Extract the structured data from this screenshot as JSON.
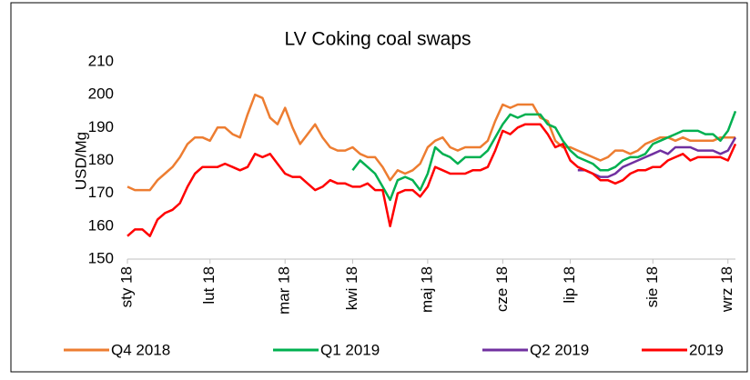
{
  "chart_data": {
    "type": "line",
    "title": "LV Coking coal swaps",
    "ylabel": "USD/Mg",
    "categories": [
      "sty 18",
      null,
      null,
      null,
      null,
      null,
      null,
      null,
      null,
      null,
      null,
      "lut 18",
      null,
      null,
      null,
      null,
      null,
      null,
      null,
      null,
      null,
      "mar 18",
      null,
      null,
      null,
      null,
      null,
      null,
      null,
      null,
      "kwi 18",
      null,
      null,
      null,
      null,
      null,
      null,
      null,
      null,
      null,
      "maj 18",
      null,
      null,
      null,
      null,
      null,
      null,
      null,
      null,
      null,
      "cze 18",
      null,
      null,
      null,
      null,
      null,
      null,
      null,
      null,
      "lip 18",
      null,
      null,
      null,
      null,
      null,
      null,
      null,
      null,
      null,
      null,
      "sie 18",
      null,
      null,
      null,
      null,
      null,
      null,
      null,
      null,
      null,
      "wrz 18",
      null
    ],
    "series": [
      {
        "name": "Q4 2018",
        "color": "#ed7d31",
        "values": [
          172,
          171,
          171,
          171,
          174,
          176,
          178,
          181,
          185,
          187,
          187,
          186,
          190,
          190,
          188,
          187,
          194,
          200,
          199,
          193,
          191,
          196,
          190,
          185,
          188,
          191,
          187,
          184,
          183,
          183,
          184,
          182,
          181,
          181,
          178,
          174,
          177,
          176,
          177,
          179,
          184,
          186,
          187,
          184,
          183,
          184,
          184,
          184,
          186,
          192,
          197,
          196,
          197,
          197,
          197,
          193,
          192,
          186,
          184,
          184,
          183,
          182,
          181,
          180,
          181,
          183,
          183,
          182,
          183,
          185,
          186,
          187,
          187,
          186,
          187,
          186,
          186,
          186,
          186,
          187,
          187,
          187
        ]
      },
      {
        "name": "Q1 2019",
        "color": "#00b050",
        "values": [
          null,
          null,
          null,
          null,
          null,
          null,
          null,
          null,
          null,
          null,
          null,
          null,
          null,
          null,
          null,
          null,
          null,
          null,
          null,
          null,
          null,
          null,
          null,
          null,
          null,
          null,
          null,
          null,
          null,
          null,
          177,
          180,
          178,
          176,
          172,
          168,
          174,
          175,
          174,
          171,
          176,
          184,
          182,
          181,
          179,
          181,
          181,
          181,
          183,
          187,
          191,
          194,
          193,
          194,
          194,
          194,
          191,
          190,
          186,
          183,
          181,
          180,
          179,
          177,
          177,
          178,
          180,
          181,
          181,
          182,
          185,
          186,
          187,
          188,
          189,
          189,
          189,
          188,
          188,
          186,
          189,
          195
        ]
      },
      {
        "name": "Q2 2019",
        "color": "#7030a0",
        "values": [
          null,
          null,
          null,
          null,
          null,
          null,
          null,
          null,
          null,
          null,
          null,
          null,
          null,
          null,
          null,
          null,
          null,
          null,
          null,
          null,
          null,
          null,
          null,
          null,
          null,
          null,
          null,
          null,
          null,
          null,
          null,
          null,
          null,
          null,
          null,
          null,
          null,
          null,
          null,
          null,
          null,
          null,
          null,
          null,
          null,
          null,
          null,
          null,
          null,
          null,
          null,
          null,
          null,
          null,
          null,
          null,
          null,
          null,
          null,
          null,
          177,
          177,
          176,
          175,
          175,
          176,
          178,
          179,
          180,
          181,
          182,
          183,
          182,
          184,
          184,
          184,
          183,
          183,
          183,
          182,
          183,
          187
        ]
      },
      {
        "name": "2019",
        "color": "#ff0000",
        "values": [
          157,
          159,
          159,
          157,
          162,
          164,
          165,
          167,
          172,
          176,
          178,
          178,
          178,
          179,
          178,
          177,
          178,
          182,
          181,
          182,
          179,
          176,
          175,
          175,
          173,
          171,
          172,
          174,
          173,
          173,
          172,
          172,
          173,
          171,
          171,
          160,
          170,
          171,
          171,
          169,
          172,
          178,
          177,
          176,
          176,
          176,
          177,
          177,
          178,
          183,
          189,
          188,
          190,
          191,
          191,
          191,
          188,
          184,
          185,
          180,
          178,
          177,
          176,
          174,
          174,
          173,
          174,
          176,
          177,
          177,
          178,
          178,
          180,
          181,
          182,
          180,
          181,
          181,
          181,
          181,
          180,
          185
        ]
      }
    ],
    "ylim": [
      150,
      210
    ],
    "yticks": [
      150,
      160,
      170,
      180,
      190,
      200,
      210
    ],
    "grid": false,
    "legend": "bottom"
  }
}
